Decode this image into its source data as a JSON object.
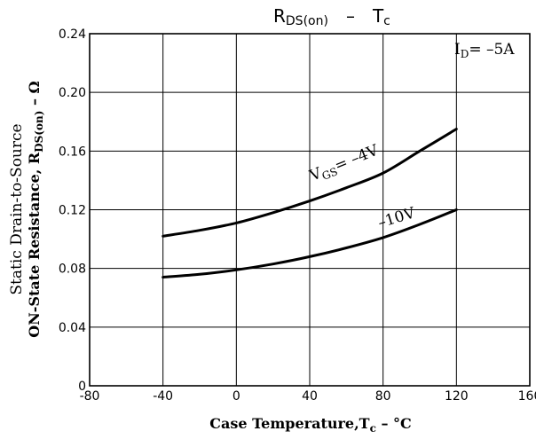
{
  "chart_data": {
    "type": "line",
    "title": {
      "main": "R",
      "main_sub": "DS(on)",
      "dash": "–",
      "right": "T",
      "right_sub": "c"
    },
    "xlabel": {
      "text": "Case Temperature,T",
      "sub": "c",
      "suffix": " – °C"
    },
    "ylabel": {
      "line1": "Static Drain-to-Source",
      "line2_prefix": "ON-State Resistance, R",
      "line2_sub": "DS(on)",
      "line2_suffix": " – Ω"
    },
    "xlim": [
      -80,
      160
    ],
    "ylim": [
      0,
      0.24
    ],
    "x_ticks": [
      "-80",
      "-40",
      "0",
      "40",
      "80",
      "120",
      "160"
    ],
    "y_ticks": [
      "0",
      "0.04",
      "0.08",
      "0.12",
      "0.16",
      "0.20",
      "0.24"
    ],
    "grid": true,
    "condition": {
      "prefix": "I",
      "sub": "D",
      "suffix": "= –5A"
    },
    "series": [
      {
        "label_prefix": "V",
        "label_sub": "GS",
        "label_suffix": "= –4V",
        "x": [
          -40,
          -20,
          0,
          20,
          40,
          60,
          80,
          100,
          120
        ],
        "y": [
          0.102,
          0.106,
          0.111,
          0.118,
          0.126,
          0.135,
          0.145,
          0.16,
          0.175
        ]
      },
      {
        "label_prefix": "–10V",
        "label_sub": "",
        "label_suffix": "",
        "x": [
          -40,
          -20,
          0,
          20,
          40,
          60,
          80,
          100,
          120
        ],
        "y": [
          0.074,
          0.076,
          0.079,
          0.083,
          0.088,
          0.094,
          0.101,
          0.11,
          0.12
        ]
      }
    ]
  }
}
